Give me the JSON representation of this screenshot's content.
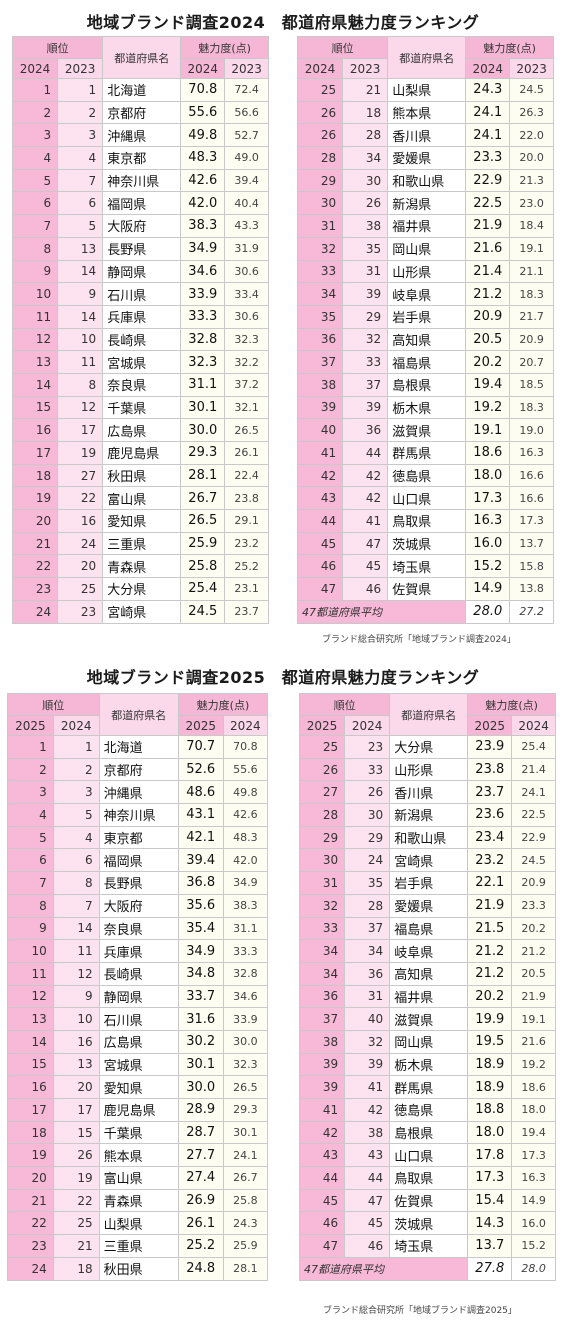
{
  "surveys": [
    {
      "title": "地域ブランド調査2024　都道府県魅力度ランキング",
      "header": {
        "rank": "順位",
        "prefecture": "都道府県名",
        "score": "魅力度(点)",
        "cur_year": "2024",
        "prev_year": "2023"
      },
      "left": [
        [
          "1",
          "1",
          "北海道",
          "70.8",
          "72.4"
        ],
        [
          "2",
          "2",
          "京都府",
          "55.6",
          "56.6"
        ],
        [
          "3",
          "3",
          "沖縄県",
          "49.8",
          "52.7"
        ],
        [
          "4",
          "4",
          "東京都",
          "48.3",
          "49.0"
        ],
        [
          "5",
          "7",
          "神奈川県",
          "42.6",
          "39.4"
        ],
        [
          "6",
          "6",
          "福岡県",
          "42.0",
          "40.4"
        ],
        [
          "7",
          "5",
          "大阪府",
          "38.3",
          "43.3"
        ],
        [
          "8",
          "13",
          "長野県",
          "34.9",
          "31.9"
        ],
        [
          "9",
          "14",
          "静岡県",
          "34.6",
          "30.6"
        ],
        [
          "10",
          "9",
          "石川県",
          "33.9",
          "33.4"
        ],
        [
          "11",
          "14",
          "兵庫県",
          "33.3",
          "30.6"
        ],
        [
          "12",
          "10",
          "長崎県",
          "32.8",
          "32.3"
        ],
        [
          "13",
          "11",
          "宮城県",
          "32.3",
          "32.2"
        ],
        [
          "14",
          "8",
          "奈良県",
          "31.1",
          "37.2"
        ],
        [
          "15",
          "12",
          "千葉県",
          "30.1",
          "32.1"
        ],
        [
          "16",
          "17",
          "広島県",
          "30.0",
          "26.5"
        ],
        [
          "17",
          "19",
          "鹿児島県",
          "29.3",
          "26.1"
        ],
        [
          "18",
          "27",
          "秋田県",
          "28.1",
          "22.4"
        ],
        [
          "19",
          "22",
          "富山県",
          "26.7",
          "23.8"
        ],
        [
          "20",
          "16",
          "愛知県",
          "26.5",
          "29.1"
        ],
        [
          "21",
          "24",
          "三重県",
          "25.9",
          "23.2"
        ],
        [
          "22",
          "20",
          "青森県",
          "25.8",
          "25.2"
        ],
        [
          "23",
          "25",
          "大分県",
          "25.4",
          "23.1"
        ],
        [
          "24",
          "23",
          "宮崎県",
          "24.5",
          "23.7"
        ]
      ],
      "right": [
        [
          "25",
          "21",
          "山梨県",
          "24.3",
          "24.5"
        ],
        [
          "26",
          "18",
          "熊本県",
          "24.1",
          "26.3"
        ],
        [
          "26",
          "28",
          "香川県",
          "24.1",
          "22.0"
        ],
        [
          "28",
          "34",
          "愛媛県",
          "23.3",
          "20.0"
        ],
        [
          "29",
          "30",
          "和歌山県",
          "22.9",
          "21.3"
        ],
        [
          "30",
          "26",
          "新潟県",
          "22.5",
          "23.0"
        ],
        [
          "31",
          "38",
          "福井県",
          "21.9",
          "18.4"
        ],
        [
          "32",
          "35",
          "岡山県",
          "21.6",
          "19.1"
        ],
        [
          "33",
          "31",
          "山形県",
          "21.4",
          "21.1"
        ],
        [
          "34",
          "39",
          "岐阜県",
          "21.2",
          "18.3"
        ],
        [
          "35",
          "29",
          "岩手県",
          "20.9",
          "21.7"
        ],
        [
          "36",
          "32",
          "高知県",
          "20.5",
          "20.9"
        ],
        [
          "37",
          "33",
          "福島県",
          "20.2",
          "20.7"
        ],
        [
          "38",
          "37",
          "島根県",
          "19.4",
          "18.5"
        ],
        [
          "39",
          "39",
          "栃木県",
          "19.2",
          "18.3"
        ],
        [
          "40",
          "36",
          "滋賀県",
          "19.1",
          "19.0"
        ],
        [
          "41",
          "44",
          "群馬県",
          "18.6",
          "16.3"
        ],
        [
          "42",
          "42",
          "徳島県",
          "18.0",
          "16.6"
        ],
        [
          "43",
          "42",
          "山口県",
          "17.3",
          "16.6"
        ],
        [
          "44",
          "41",
          "鳥取県",
          "16.3",
          "17.3"
        ],
        [
          "45",
          "47",
          "茨城県",
          "16.0",
          "13.7"
        ],
        [
          "46",
          "45",
          "埼玉県",
          "15.2",
          "15.8"
        ],
        [
          "47",
          "46",
          "佐賀県",
          "14.9",
          "13.8"
        ]
      ],
      "average": {
        "label": "47都道府県平均",
        "cur": "28.0",
        "prev": "27.2"
      },
      "source": "ブランド総合研究所「地域ブランド調査2024」"
    },
    {
      "title": "地域ブランド調査2025　都道府県魅力度ランキング",
      "header": {
        "rank": "順位",
        "prefecture": "都道府県名",
        "score": "魅力度(点)",
        "cur_year": "2025",
        "prev_year": "2024"
      },
      "left": [
        [
          "1",
          "1",
          "北海道",
          "70.7",
          "70.8"
        ],
        [
          "2",
          "2",
          "京都府",
          "52.6",
          "55.6"
        ],
        [
          "3",
          "3",
          "沖縄県",
          "48.6",
          "49.8"
        ],
        [
          "4",
          "5",
          "神奈川県",
          "43.1",
          "42.6"
        ],
        [
          "5",
          "4",
          "東京都",
          "42.1",
          "48.3"
        ],
        [
          "6",
          "6",
          "福岡県",
          "39.4",
          "42.0"
        ],
        [
          "7",
          "8",
          "長野県",
          "36.8",
          "34.9"
        ],
        [
          "8",
          "7",
          "大阪府",
          "35.6",
          "38.3"
        ],
        [
          "9",
          "14",
          "奈良県",
          "35.4",
          "31.1"
        ],
        [
          "10",
          "11",
          "兵庫県",
          "34.9",
          "33.3"
        ],
        [
          "11",
          "12",
          "長崎県",
          "34.8",
          "32.8"
        ],
        [
          "12",
          "9",
          "静岡県",
          "33.7",
          "34.6"
        ],
        [
          "13",
          "10",
          "石川県",
          "31.6",
          "33.9"
        ],
        [
          "14",
          "16",
          "広島県",
          "30.2",
          "30.0"
        ],
        [
          "15",
          "13",
          "宮城県",
          "30.1",
          "32.3"
        ],
        [
          "16",
          "20",
          "愛知県",
          "30.0",
          "26.5"
        ],
        [
          "17",
          "17",
          "鹿児島県",
          "28.9",
          "29.3"
        ],
        [
          "18",
          "15",
          "千葉県",
          "28.7",
          "30.1"
        ],
        [
          "19",
          "26",
          "熊本県",
          "27.7",
          "24.1"
        ],
        [
          "20",
          "19",
          "富山県",
          "27.4",
          "26.7"
        ],
        [
          "21",
          "22",
          "青森県",
          "26.9",
          "25.8"
        ],
        [
          "22",
          "25",
          "山梨県",
          "26.1",
          "24.3"
        ],
        [
          "23",
          "21",
          "三重県",
          "25.2",
          "25.9"
        ],
        [
          "24",
          "18",
          "秋田県",
          "24.8",
          "28.1"
        ]
      ],
      "right": [
        [
          "25",
          "23",
          "大分県",
          "23.9",
          "25.4"
        ],
        [
          "26",
          "33",
          "山形県",
          "23.8",
          "21.4"
        ],
        [
          "27",
          "26",
          "香川県",
          "23.7",
          "24.1"
        ],
        [
          "28",
          "30",
          "新潟県",
          "23.6",
          "22.5"
        ],
        [
          "29",
          "29",
          "和歌山県",
          "23.4",
          "22.9"
        ],
        [
          "30",
          "24",
          "宮崎県",
          "23.2",
          "24.5"
        ],
        [
          "31",
          "35",
          "岩手県",
          "22.1",
          "20.9"
        ],
        [
          "32",
          "28",
          "愛媛県",
          "21.9",
          "23.3"
        ],
        [
          "33",
          "37",
          "福島県",
          "21.5",
          "20.2"
        ],
        [
          "34",
          "34",
          "岐阜県",
          "21.2",
          "21.2"
        ],
        [
          "34",
          "36",
          "高知県",
          "21.2",
          "20.5"
        ],
        [
          "36",
          "31",
          "福井県",
          "20.2",
          "21.9"
        ],
        [
          "37",
          "40",
          "滋賀県",
          "19.9",
          "19.1"
        ],
        [
          "38",
          "32",
          "岡山県",
          "19.5",
          "21.6"
        ],
        [
          "39",
          "39",
          "栃木県",
          "18.9",
          "19.2"
        ],
        [
          "39",
          "41",
          "群馬県",
          "18.9",
          "18.6"
        ],
        [
          "41",
          "42",
          "徳島県",
          "18.8",
          "18.0"
        ],
        [
          "42",
          "38",
          "島根県",
          "18.0",
          "19.4"
        ],
        [
          "43",
          "43",
          "山口県",
          "17.8",
          "17.3"
        ],
        [
          "44",
          "44",
          "鳥取県",
          "17.3",
          "16.3"
        ],
        [
          "45",
          "47",
          "佐賀県",
          "15.4",
          "14.9"
        ],
        [
          "46",
          "45",
          "茨城県",
          "14.3",
          "16.0"
        ],
        [
          "47",
          "46",
          "埼玉県",
          "13.7",
          "15.2"
        ]
      ],
      "average": {
        "label": "47都道府県平均",
        "cur": "27.8",
        "prev": "28.0"
      },
      "source": "ブランド総合研究所「地域ブランド調査2025」"
    }
  ]
}
